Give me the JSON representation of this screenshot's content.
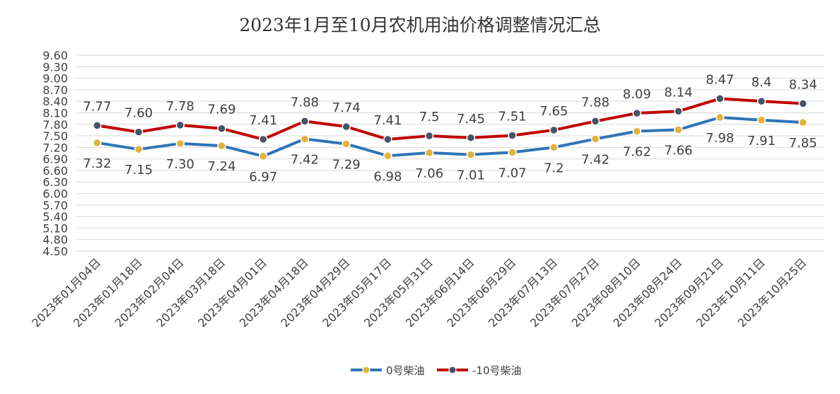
{
  "chart_data": {
    "type": "line",
    "title": "2023年1月至10月农机用油价格调整情况汇总",
    "xlabel": "",
    "ylabel": "",
    "categories": [
      "2023年01月04日",
      "2023年01月18日",
      "2023年02月04日",
      "2023年03月18日",
      "2023年04月01日",
      "2023年04月18日",
      "2023年04月29日",
      "2023年05月17日",
      "2023年05月31日",
      "2023年06月14日",
      "2023年06月29日",
      "2023年07月13日",
      "2023年07月27日",
      "2023年08月10日",
      "2023年08月24日",
      "2023年09月21日",
      "2023年10月11日",
      "2023年10月25日"
    ],
    "ylim": [
      4.5,
      9.6
    ],
    "yticks": [
      "4.50",
      "4.80",
      "5.10",
      "5.40",
      "5.70",
      "6.00",
      "6.30",
      "6.60",
      "6.90",
      "7.20",
      "7.50",
      "7.80",
      "8.10",
      "8.40",
      "8.70",
      "9.00",
      "9.30",
      "9.60"
    ],
    "grid": true,
    "legend_position": "bottom",
    "series": [
      {
        "name": "0号柴油",
        "color": "#2e75b6",
        "marker_color": "#e0b43a",
        "label_position": "below",
        "values": [
          7.32,
          7.15,
          7.3,
          7.24,
          6.97,
          7.42,
          7.29,
          6.98,
          7.06,
          7.01,
          7.07,
          7.2,
          7.42,
          7.62,
          7.66,
          7.98,
          7.91,
          7.85
        ],
        "labels": [
          "7.32",
          "7.15",
          "7.30",
          "7.24",
          "6.97",
          "7.42",
          "7.29",
          "6.98",
          "7.06",
          "7.01",
          "7.07",
          "7.2",
          "7.42",
          "7.62",
          "7.66",
          "7.98",
          "7.91",
          "7.85"
        ]
      },
      {
        "name": "-10号柴油",
        "color": "#c00000",
        "marker_color": "#44546a",
        "label_position": "above",
        "values": [
          7.77,
          7.6,
          7.78,
          7.69,
          7.41,
          7.88,
          7.74,
          7.41,
          7.5,
          7.45,
          7.51,
          7.65,
          7.88,
          8.09,
          8.14,
          8.47,
          8.4,
          8.34
        ],
        "labels": [
          "7.77",
          "7.60",
          "7.78",
          "7.69",
          "7.41",
          "7.88",
          "7.74",
          "7.41",
          "7.5",
          "7.45",
          "7.51",
          "7.65",
          "7.88",
          "8.09",
          "8.14",
          "8.47",
          "8.4",
          "8.34"
        ]
      }
    ]
  }
}
